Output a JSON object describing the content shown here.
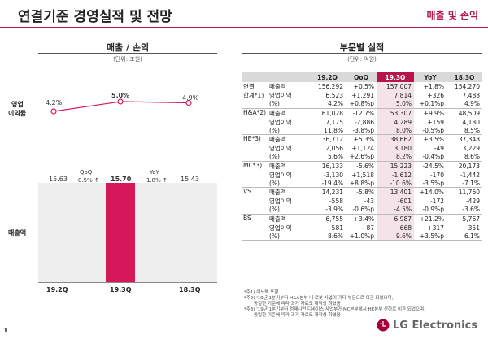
{
  "page": {
    "title": "연결기준 경영실적 및 전망",
    "title_right": "매출 및 손익",
    "page_number": "1",
    "logo_text": "LG Electronics",
    "accent_color": "#b5164b"
  },
  "left": {
    "title": "매출 / 손익",
    "unit": "(단위: 조원)",
    "margin_label_1": "영업",
    "margin_label_2": "이익률",
    "sales_label": "매출액",
    "line_values": [
      "4.2%",
      "5.0%",
      "4.9%"
    ],
    "bar_values": [
      "15.63",
      "15.70",
      "15.43"
    ],
    "qoq_label": "QoQ",
    "qoq_value": "0.5% ↑",
    "yoy_label": "YoY",
    "yoy_value": "1.8% ↑",
    "x_labels": [
      "19.2Q",
      "19.3Q",
      "18.3Q"
    ]
  },
  "chart_data": {
    "type": "bar",
    "categories": [
      "19.2Q",
      "19.3Q",
      "18.3Q"
    ],
    "series": [
      {
        "values": [
          15.63,
          15.7,
          15.43
        ]
      },
      {
        "values": [
          4.2,
          5.0,
          4.9
        ]
      }
    ],
    "highlight_color": "#d6185a",
    "line_color": "#d6185a"
  },
  "right": {
    "title": "부문별 실적",
    "unit": "(단위: 억원)",
    "headers": [
      "19.2Q",
      "QoQ",
      "19.3Q",
      "YoY",
      "18.3Q"
    ],
    "groups": [
      {
        "name": [
          "연결",
          "합계*1)"
        ],
        "rows": [
          [
            "매출액",
            "156,292",
            "+0.5%",
            "157,007",
            "+1.8%",
            "154,270"
          ],
          [
            "영업이익",
            "6,523",
            "+1,291",
            "7,814",
            "+326",
            "7,488"
          ],
          [
            "(%)",
            "4.2%",
            "+0.8%p",
            "5.0%",
            "+0.1%p",
            "4.9%"
          ]
        ]
      },
      {
        "name": [
          "H&A*2)"
        ],
        "rows": [
          [
            "매출액",
            "61,028",
            "-12.7%",
            "53,307",
            "+9.9%",
            "48,509"
          ],
          [
            "영업이익",
            "7,175",
            "-2,886",
            "4,289",
            "+159",
            "4,130"
          ],
          [
            "(%)",
            "11.8%",
            "-3.8%p",
            "8.0%",
            "-0.5%p",
            "8.5%"
          ]
        ]
      },
      {
        "name": [
          "HE*3)"
        ],
        "rows": [
          [
            "매출액",
            "36,712",
            "+5.3%",
            "38,662",
            "+3.5%",
            "37,348"
          ],
          [
            "영업이익",
            "2,056",
            "+1,124",
            "3,180",
            "-49",
            "3,229"
          ],
          [
            "(%)",
            "5.6%",
            "+2.6%p",
            "8.2%",
            "-0.4%p",
            "8.6%"
          ]
        ]
      },
      {
        "name": [
          "MC*3)"
        ],
        "rows": [
          [
            "매출액",
            "16,133",
            "-5.6%",
            "15,223",
            "-24.5%",
            "20,173"
          ],
          [
            "영업이익",
            "-3,130",
            "+1,518",
            "-1,612",
            "-170",
            "-1,442"
          ],
          [
            "(%)",
            "-19.4%",
            "+8.8%p",
            "-10.6%",
            "-3.5%p",
            "-7.1%"
          ]
        ]
      },
      {
        "name": [
          "VS"
        ],
        "rows": [
          [
            "매출액",
            "14,231",
            "-5.8%",
            "13,401",
            "+14.0%",
            "11,760"
          ],
          [
            "영업이익",
            "-558",
            "-43",
            "-601",
            "-172",
            "-429"
          ],
          [
            "(%)",
            "-3.9%",
            "-0.6%p",
            "-4.5%",
            "-0.9%p",
            "-3.6%"
          ]
        ]
      },
      {
        "name": [
          "BS"
        ],
        "rows": [
          [
            "매출액",
            "6,755",
            "+3.4%",
            "6,987",
            "+21.2%",
            "5,767"
          ],
          [
            "영업이익",
            "581",
            "+87",
            "668",
            "+317",
            "351"
          ],
          [
            "(%)",
            "8.6%",
            "+1.0%p",
            "9.6%",
            "+3.5%p",
            "6.1%"
          ]
        ]
      }
    ]
  },
  "footnotes": [
    "*주1) 이노텍 포함",
    "*주2) '19년 1분기부터 H&A본부 내 로봇 사업이 기타 부문으로 이관 되었으며,",
    "동일한 기준에 따라 과거 자료도 재작성 하였음",
    "*주3) '19년 1분기부터 컴패니언 디바이스 사업부가 MC본부에서 HE본부 산하로 이관 되었으며,",
    "동일한 기준에 따라 과거 자료도 재작성 하였음"
  ]
}
